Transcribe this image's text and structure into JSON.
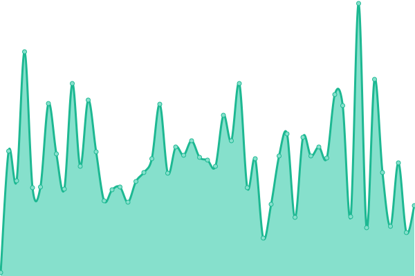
{
  "chart_data": {
    "type": "area",
    "values": [
      5,
      181,
      138,
      325,
      128,
      129,
      250,
      177,
      126,
      279,
      159,
      255,
      180,
      109,
      125,
      129,
      107,
      137,
      150,
      170,
      249,
      149,
      187,
      175,
      196,
      172,
      168,
      159,
      233,
      196,
      279,
      128,
      170,
      55,
      104,
      174,
      206,
      85,
      201,
      174,
      187,
      171,
      263,
      247,
      86,
      395,
      70,
      285,
      150,
      72,
      164,
      63,
      102
    ],
    "ylim": [
      0,
      400
    ],
    "color": "#1db892",
    "fill": "#86e0cc"
  }
}
